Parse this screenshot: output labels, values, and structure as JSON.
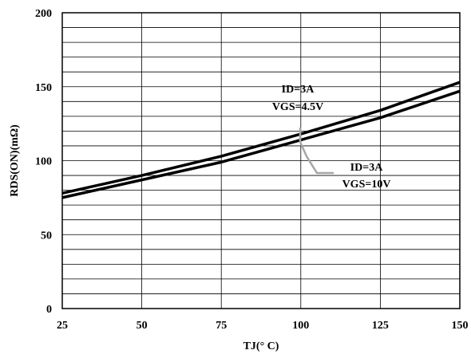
{
  "chart_data": {
    "type": "line",
    "xlabel": "TJ(° C)",
    "ylabel": "RDS(ON)(mΩ)",
    "xlim": [
      25,
      150
    ],
    "ylim": [
      0,
      200
    ],
    "xticks": [
      25,
      50,
      75,
      100,
      125,
      150
    ],
    "yticks": [
      0,
      50,
      100,
      150,
      200
    ],
    "x_minor_gridlines": [
      25,
      50,
      75,
      100,
      125,
      150
    ],
    "y_minor_step": 10,
    "grid": true,
    "series": [
      {
        "x": [
          25,
          50,
          75,
          100,
          125,
          150
        ],
        "values": [
          78,
          90,
          103,
          118,
          134,
          153
        ]
      },
      {
        "x": [
          25,
          50,
          75,
          100,
          125,
          150
        ],
        "values": [
          75,
          87,
          99,
          114,
          129,
          147
        ]
      }
    ],
    "annotations": [
      {
        "lines": [
          "ID=3A",
          "VGS=4.5V"
        ]
      },
      {
        "lines": [
          "ID=3A",
          "VGS=10V"
        ]
      }
    ],
    "line_color": "#000000",
    "leader_color": "#a6a6a6"
  }
}
